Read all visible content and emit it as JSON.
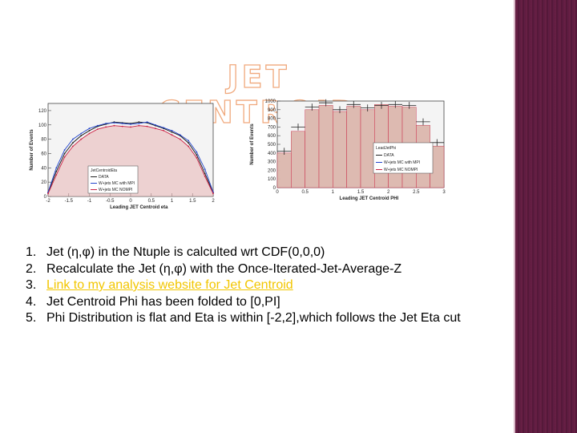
{
  "title": "JET CENTROID",
  "colors": {
    "sidebar": "#5c1a3c",
    "title_outline": "#f0a97d",
    "link": "#f2c600",
    "data": "#222222",
    "mc_mpi": "#2244cc",
    "mc_nompi": "#cc2244",
    "mc_fill": "#e8b4b4",
    "mc_fill2": "#7ed67e"
  },
  "list": [
    {
      "num": "1.",
      "text": "Jet (η,φ) in the Ntuple is calculted wrt CDF(0,0,0)"
    },
    {
      "num": "2.",
      "text": "Recalculate the Jet (η,φ)  with the Once-Iterated-Jet-Average-Z"
    },
    {
      "num": "3.",
      "text": "Link to my analysis website for Jet Centroid",
      "link": true
    },
    {
      "num": "4.",
      "text": "Jet Centroid Phi has been folded  to [0,PI]"
    },
    {
      "num": "5.",
      "text": "Phi Distribution is flat and Eta is within [-2,2],which follows the Jet Eta cut"
    }
  ],
  "chart_data": [
    {
      "type": "line",
      "xlabel": "Leading JET Centroid eta",
      "ylabel": "Number of Events",
      "xlim": [
        -2,
        2
      ],
      "ylim": [
        0,
        130
      ],
      "x_ticks": [
        "-2",
        "-1.5",
        "-1",
        "-0.5",
        "0",
        "0.5",
        "1",
        "1.5",
        "2"
      ],
      "y_ticks": [
        "0",
        "20",
        "40",
        "60",
        "80",
        "100",
        "120"
      ],
      "legend": [
        "JetCentroidEta",
        "DATA",
        "W+jets MC with MPI",
        "W+jets MC NOMPI"
      ],
      "x": [
        -2.0,
        -1.8,
        -1.6,
        -1.4,
        -1.2,
        -1.0,
        -0.8,
        -0.6,
        -0.4,
        -0.2,
        0.0,
        0.2,
        0.4,
        0.6,
        0.8,
        1.0,
        1.2,
        1.4,
        1.6,
        1.8,
        2.0
      ],
      "series": [
        {
          "name": "DATA",
          "values": [
            5,
            35,
            60,
            75,
            85,
            92,
            98,
            101,
            104,
            103,
            102,
            104,
            103,
            99,
            95,
            90,
            85,
            75,
            58,
            32,
            5
          ]
        },
        {
          "name": "W+jets MC with MPI",
          "values": [
            6,
            40,
            65,
            80,
            88,
            95,
            99,
            102,
            103,
            102,
            101,
            102,
            104,
            100,
            96,
            92,
            86,
            78,
            62,
            38,
            6
          ]
        },
        {
          "name": "W+jets MC NOMPI",
          "values": [
            4,
            30,
            55,
            70,
            80,
            88,
            94,
            97,
            99,
            98,
            97,
            99,
            98,
            95,
            92,
            86,
            80,
            70,
            54,
            28,
            4
          ]
        }
      ]
    },
    {
      "type": "bar",
      "xlabel": "Leading JET Centroid PHI",
      "ylabel": "Number of Events",
      "xlim": [
        0,
        3
      ],
      "ylim": [
        0,
        1000
      ],
      "x_ticks": [
        "0",
        "0.5",
        "1",
        "1.5",
        "2",
        "2.5",
        "3"
      ],
      "y_ticks": [
        "0",
        "100",
        "200",
        "300",
        "400",
        "500",
        "600",
        "700",
        "800",
        "900",
        "1000"
      ],
      "legend": [
        "LeadJetPhi",
        "DATA",
        "W+jets MC with MPI",
        "W+jets MC NOMPI"
      ],
      "categories": [
        "0.0-0.25",
        "0.25-0.5",
        "0.5-0.75",
        "0.75-1.0",
        "1.0-1.25",
        "1.25-1.5",
        "1.5-1.75",
        "1.75-2.0",
        "2.0-2.25",
        "2.25-2.5",
        "2.5-2.75",
        "2.75-3.0"
      ],
      "series": [
        {
          "name": "DATA",
          "values": [
            420,
            700,
            930,
            980,
            900,
            960,
            920,
            950,
            960,
            950,
            760,
            520
          ]
        },
        {
          "name": "W+jets MC with MPI",
          "values": [
            400,
            650,
            900,
            950,
            880,
            940,
            900,
            960,
            940,
            930,
            720,
            480
          ]
        },
        {
          "name": "W+jets MC NOMPI",
          "values": [
            350,
            600,
            850,
            920,
            850,
            900,
            870,
            920,
            900,
            900,
            680,
            440
          ]
        }
      ]
    }
  ]
}
